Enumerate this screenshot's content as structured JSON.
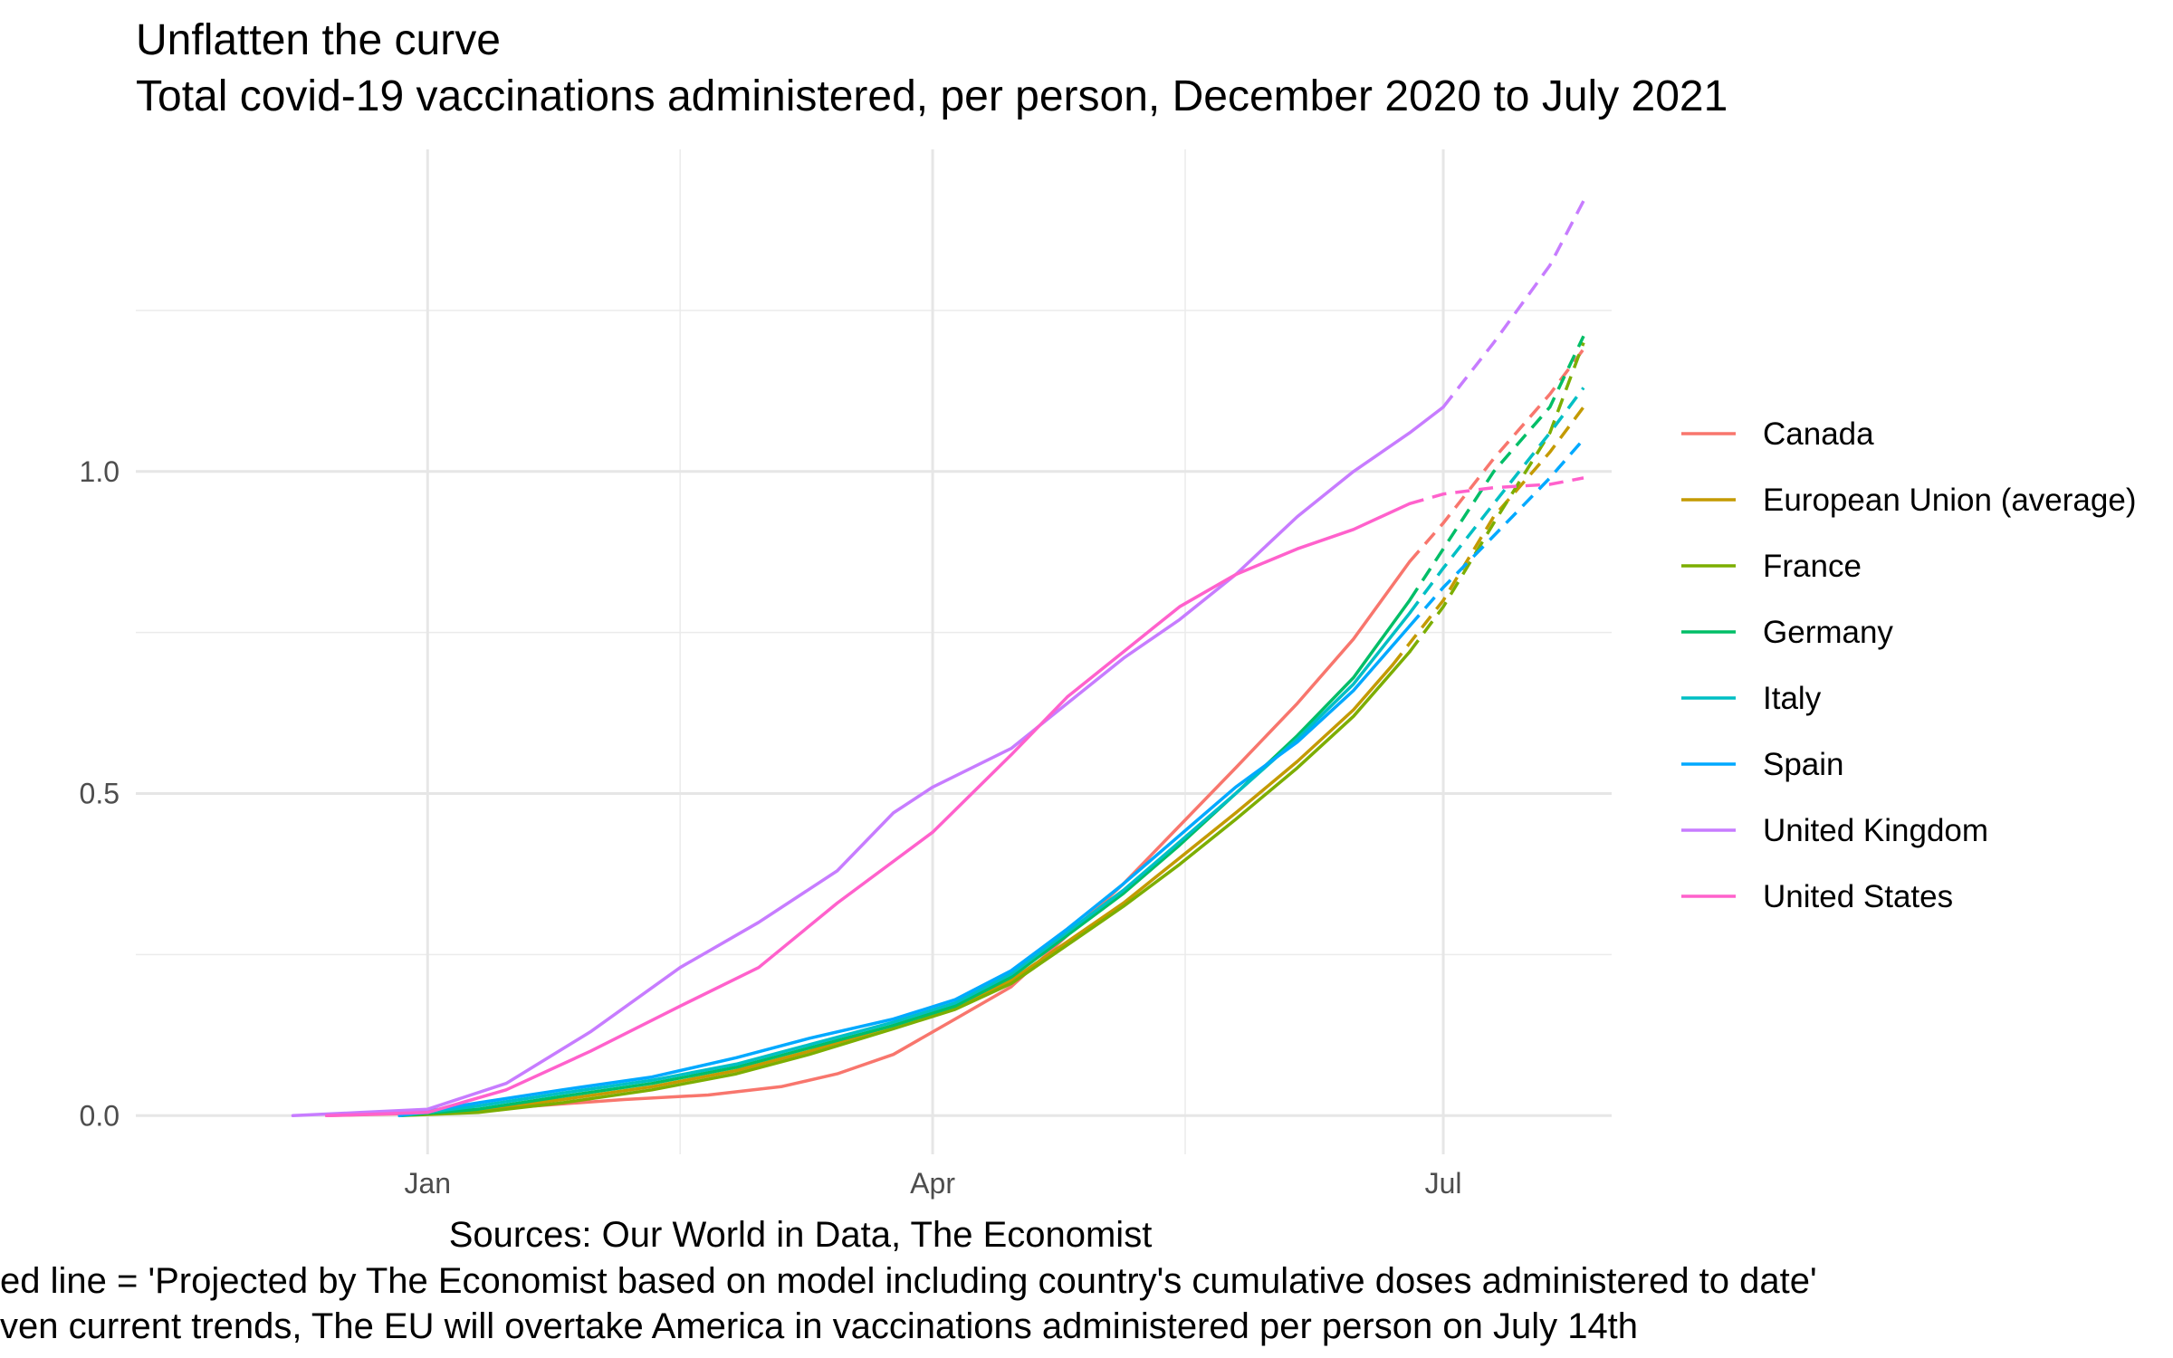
{
  "chart_data": {
    "type": "line",
    "title": "Unflatten the curve",
    "subtitle": "Total covid-19 vaccinations administered, per person, December 2020 to July 2021",
    "xlabel": "",
    "ylabel": "",
    "x_ticks": [
      {
        "label": "Jan",
        "date": "2021-01-01"
      },
      {
        "label": "Apr",
        "date": "2021-04-01"
      },
      {
        "label": "Jul",
        "date": "2021-07-01"
      }
    ],
    "x_minor_ticks": [
      "2021-02-15",
      "2021-05-16"
    ],
    "xlim": [
      "2020-11-10",
      "2021-07-31"
    ],
    "y_ticks": [
      {
        "label": "0.0",
        "value": 0
      },
      {
        "label": "0.5",
        "value": 0.5
      },
      {
        "label": "1.0",
        "value": 1.0
      }
    ],
    "y_minor_ticks": [
      0.25,
      0.75,
      1.25
    ],
    "ylim": [
      -0.06,
      1.5
    ],
    "grid": true,
    "legend_position": "right",
    "captions": [
      "Sources: Our World in Data, The Economist",
      "ed line = 'Projected by The Economist based on model including country's cumulative doses administered to date'",
      "ven current trends, The EU will overtake America in vaccinations administered per person on July 14th"
    ],
    "series": [
      {
        "name": "Canada",
        "color": "#F8766D",
        "actual": [
          [
            "2020-12-14",
            0
          ],
          [
            "2021-01-01",
            0.004
          ],
          [
            "2021-01-20",
            0.015
          ],
          [
            "2021-02-05",
            0.025
          ],
          [
            "2021-02-20",
            0.032
          ],
          [
            "2021-03-05",
            0.045
          ],
          [
            "2021-03-15",
            0.065
          ],
          [
            "2021-03-25",
            0.095
          ],
          [
            "2021-04-05",
            0.15
          ],
          [
            "2021-04-15",
            0.2
          ],
          [
            "2021-04-25",
            0.28
          ],
          [
            "2021-05-05",
            0.36
          ],
          [
            "2021-05-15",
            0.45
          ],
          [
            "2021-05-25",
            0.54
          ],
          [
            "2021-06-05",
            0.64
          ],
          [
            "2021-06-15",
            0.74
          ],
          [
            "2021-06-25",
            0.86
          ]
        ],
        "projected": [
          [
            "2021-06-25",
            0.86
          ],
          [
            "2021-07-01",
            0.92
          ],
          [
            "2021-07-10",
            1.02
          ],
          [
            "2021-07-20",
            1.12
          ],
          [
            "2021-07-26",
            1.19
          ]
        ]
      },
      {
        "name": "European Union (average)",
        "color": "#C49A00",
        "actual": [
          [
            "2020-12-27",
            0
          ],
          [
            "2021-01-10",
            0.008
          ],
          [
            "2021-01-25",
            0.025
          ],
          [
            "2021-02-10",
            0.045
          ],
          [
            "2021-02-25",
            0.07
          ],
          [
            "2021-03-10",
            0.1
          ],
          [
            "2021-03-25",
            0.14
          ],
          [
            "2021-04-05",
            0.17
          ],
          [
            "2021-04-15",
            0.21
          ],
          [
            "2021-04-25",
            0.27
          ],
          [
            "2021-05-05",
            0.33
          ],
          [
            "2021-05-15",
            0.4
          ],
          [
            "2021-05-25",
            0.47
          ],
          [
            "2021-06-05",
            0.55
          ],
          [
            "2021-06-15",
            0.63
          ],
          [
            "2021-06-22",
            0.7
          ]
        ],
        "projected": [
          [
            "2021-06-22",
            0.7
          ],
          [
            "2021-07-01",
            0.8
          ],
          [
            "2021-07-10",
            0.93
          ],
          [
            "2021-07-20",
            1.03
          ],
          [
            "2021-07-26",
            1.1
          ]
        ]
      },
      {
        "name": "France",
        "color": "#7CAE00",
        "actual": [
          [
            "2020-12-27",
            0
          ],
          [
            "2021-01-10",
            0.005
          ],
          [
            "2021-01-25",
            0.02
          ],
          [
            "2021-02-10",
            0.04
          ],
          [
            "2021-02-25",
            0.065
          ],
          [
            "2021-03-10",
            0.095
          ],
          [
            "2021-03-25",
            0.135
          ],
          [
            "2021-04-05",
            0.165
          ],
          [
            "2021-04-15",
            0.205
          ],
          [
            "2021-04-25",
            0.265
          ],
          [
            "2021-05-05",
            0.325
          ],
          [
            "2021-05-15",
            0.39
          ],
          [
            "2021-05-25",
            0.46
          ],
          [
            "2021-06-05",
            0.54
          ],
          [
            "2021-06-15",
            0.62
          ],
          [
            "2021-06-25",
            0.72
          ]
        ],
        "projected": [
          [
            "2021-06-25",
            0.72
          ],
          [
            "2021-07-01",
            0.79
          ],
          [
            "2021-07-10",
            0.92
          ],
          [
            "2021-07-20",
            1.06
          ],
          [
            "2021-07-26",
            1.2
          ]
        ]
      },
      {
        "name": "Germany",
        "color": "#00BE67",
        "actual": [
          [
            "2020-12-27",
            0
          ],
          [
            "2021-01-10",
            0.01
          ],
          [
            "2021-01-25",
            0.03
          ],
          [
            "2021-02-10",
            0.05
          ],
          [
            "2021-02-25",
            0.075
          ],
          [
            "2021-03-10",
            0.105
          ],
          [
            "2021-03-25",
            0.14
          ],
          [
            "2021-04-05",
            0.17
          ],
          [
            "2021-04-15",
            0.215
          ],
          [
            "2021-04-25",
            0.28
          ],
          [
            "2021-05-05",
            0.345
          ],
          [
            "2021-05-15",
            0.42
          ],
          [
            "2021-05-25",
            0.5
          ],
          [
            "2021-06-05",
            0.59
          ],
          [
            "2021-06-15",
            0.68
          ],
          [
            "2021-06-25",
            0.8
          ]
        ],
        "projected": [
          [
            "2021-06-25",
            0.8
          ],
          [
            "2021-07-01",
            0.88
          ],
          [
            "2021-07-10",
            1.0
          ],
          [
            "2021-07-20",
            1.1
          ],
          [
            "2021-07-26",
            1.21
          ]
        ]
      },
      {
        "name": "Italy",
        "color": "#00BFC4",
        "actual": [
          [
            "2020-12-27",
            0
          ],
          [
            "2021-01-10",
            0.015
          ],
          [
            "2021-01-25",
            0.035
          ],
          [
            "2021-02-10",
            0.055
          ],
          [
            "2021-02-25",
            0.08
          ],
          [
            "2021-03-10",
            0.11
          ],
          [
            "2021-03-25",
            0.145
          ],
          [
            "2021-04-05",
            0.175
          ],
          [
            "2021-04-15",
            0.22
          ],
          [
            "2021-04-25",
            0.285
          ],
          [
            "2021-05-05",
            0.35
          ],
          [
            "2021-05-15",
            0.425
          ],
          [
            "2021-05-25",
            0.5
          ],
          [
            "2021-06-05",
            0.585
          ],
          [
            "2021-06-15",
            0.67
          ],
          [
            "2021-06-25",
            0.78
          ]
        ],
        "projected": [
          [
            "2021-06-25",
            0.78
          ],
          [
            "2021-07-01",
            0.85
          ],
          [
            "2021-07-10",
            0.95
          ],
          [
            "2021-07-20",
            1.06
          ],
          [
            "2021-07-26",
            1.13
          ]
        ]
      },
      {
        "name": "Spain",
        "color": "#00A9FF",
        "actual": [
          [
            "2020-12-27",
            0
          ],
          [
            "2021-01-10",
            0.02
          ],
          [
            "2021-01-25",
            0.04
          ],
          [
            "2021-02-10",
            0.06
          ],
          [
            "2021-02-25",
            0.09
          ],
          [
            "2021-03-10",
            0.12
          ],
          [
            "2021-03-25",
            0.15
          ],
          [
            "2021-04-05",
            0.18
          ],
          [
            "2021-04-15",
            0.225
          ],
          [
            "2021-04-25",
            0.29
          ],
          [
            "2021-05-05",
            0.36
          ],
          [
            "2021-05-15",
            0.435
          ],
          [
            "2021-05-25",
            0.51
          ],
          [
            "2021-06-05",
            0.58
          ],
          [
            "2021-06-15",
            0.66
          ],
          [
            "2021-06-25",
            0.76
          ]
        ],
        "projected": [
          [
            "2021-06-25",
            0.76
          ],
          [
            "2021-07-01",
            0.82
          ],
          [
            "2021-07-10",
            0.9
          ],
          [
            "2021-07-20",
            0.99
          ],
          [
            "2021-07-26",
            1.05
          ]
        ]
      },
      {
        "name": "United Kingdom",
        "color": "#C77CFF",
        "actual": [
          [
            "2020-12-08",
            0
          ],
          [
            "2020-12-20",
            0.005
          ],
          [
            "2021-01-01",
            0.01
          ],
          [
            "2021-01-15",
            0.05
          ],
          [
            "2021-01-30",
            0.13
          ],
          [
            "2021-02-15",
            0.23
          ],
          [
            "2021-03-01",
            0.3
          ],
          [
            "2021-03-15",
            0.38
          ],
          [
            "2021-03-25",
            0.47
          ],
          [
            "2021-04-01",
            0.51
          ],
          [
            "2021-04-15",
            0.57
          ],
          [
            "2021-04-25",
            0.64
          ],
          [
            "2021-05-05",
            0.71
          ],
          [
            "2021-05-15",
            0.77
          ],
          [
            "2021-05-25",
            0.84
          ],
          [
            "2021-06-05",
            0.93
          ],
          [
            "2021-06-15",
            1.0
          ],
          [
            "2021-06-25",
            1.06
          ],
          [
            "2021-07-01",
            1.1
          ]
        ],
        "projected": [
          [
            "2021-07-01",
            1.1
          ],
          [
            "2021-07-10",
            1.2
          ],
          [
            "2021-07-20",
            1.32
          ],
          [
            "2021-07-26",
            1.42
          ]
        ]
      },
      {
        "name": "United States",
        "color": "#FF61CC",
        "actual": [
          [
            "2020-12-14",
            0
          ],
          [
            "2021-01-01",
            0.005
          ],
          [
            "2021-01-15",
            0.04
          ],
          [
            "2021-01-30",
            0.1
          ],
          [
            "2021-02-15",
            0.17
          ],
          [
            "2021-03-01",
            0.23
          ],
          [
            "2021-03-15",
            0.33
          ],
          [
            "2021-04-01",
            0.44
          ],
          [
            "2021-04-15",
            0.56
          ],
          [
            "2021-04-25",
            0.65
          ],
          [
            "2021-05-05",
            0.72
          ],
          [
            "2021-05-15",
            0.79
          ],
          [
            "2021-05-25",
            0.84
          ],
          [
            "2021-06-05",
            0.88
          ],
          [
            "2021-06-15",
            0.91
          ],
          [
            "2021-06-25",
            0.95
          ]
        ],
        "projected": [
          [
            "2021-06-25",
            0.95
          ],
          [
            "2021-07-01",
            0.965
          ],
          [
            "2021-07-10",
            0.975
          ],
          [
            "2021-07-20",
            0.98
          ],
          [
            "2021-07-26",
            0.99
          ]
        ]
      }
    ]
  }
}
